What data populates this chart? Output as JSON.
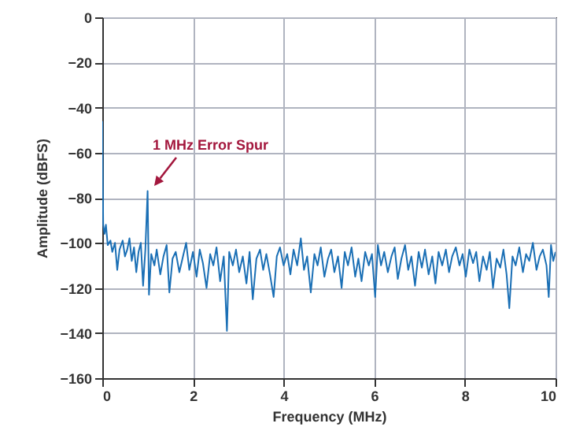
{
  "chart_data": {
    "type": "line",
    "xlabel": "Frequency (MHz)",
    "ylabel": "Amplitude (dBFS)",
    "xlim": [
      0,
      10
    ],
    "xticks": [
      0,
      2,
      4,
      6,
      8,
      10
    ],
    "ylim": [
      -160,
      0
    ],
    "yticks": [
      -160,
      -140,
      -120,
      -100,
      -80,
      -60,
      -40,
      -20,
      0
    ],
    "grid": true,
    "annotations": [
      "1 MHz Error Spur"
    ],
    "series": [
      {
        "color": "#1a6fb5",
        "x": [
          0,
          0.02,
          0.05,
          0.08,
          0.12,
          0.18,
          0.22,
          0.28,
          0.33,
          0.38,
          0.45,
          0.5,
          0.55,
          0.6,
          0.65,
          0.7,
          0.75,
          0.8,
          0.85,
          0.9,
          0.95,
          1.0,
          1.03,
          1.08,
          1.15,
          1.2,
          1.28,
          1.35,
          1.42,
          1.48,
          1.55,
          1.62,
          1.7,
          1.78,
          1.85,
          1.92,
          2.0,
          2.08,
          2.15,
          2.22,
          2.3,
          2.38,
          2.45,
          2.52,
          2.6,
          2.68,
          2.75,
          2.8,
          2.88,
          2.95,
          3.02,
          3.1,
          3.18,
          3.25,
          3.32,
          3.4,
          3.48,
          3.55,
          3.62,
          3.7,
          3.78,
          3.85,
          3.92,
          4.0,
          4.08,
          4.15,
          4.22,
          4.3,
          4.38,
          4.45,
          4.52,
          4.6,
          4.68,
          4.75,
          4.82,
          4.9,
          4.98,
          5.05,
          5.12,
          5.2,
          5.28,
          5.35,
          5.42,
          5.5,
          5.58,
          5.65,
          5.72,
          5.8,
          5.88,
          5.95,
          6.02,
          6.08,
          6.15,
          6.22,
          6.3,
          6.38,
          6.45,
          6.52,
          6.6,
          6.68,
          6.75,
          6.82,
          6.9,
          6.98,
          7.05,
          7.12,
          7.2,
          7.28,
          7.35,
          7.42,
          7.5,
          7.58,
          7.65,
          7.72,
          7.8,
          7.88,
          7.95,
          8.02,
          8.1,
          8.18,
          8.25,
          8.32,
          8.4,
          8.48,
          8.55,
          8.62,
          8.7,
          8.78,
          8.85,
          8.92,
          8.98,
          9.05,
          9.12,
          9.2,
          9.28,
          9.35,
          9.42,
          9.5,
          9.58,
          9.65,
          9.72,
          9.8,
          9.85,
          9.9,
          9.95,
          10
        ],
        "values": [
          -46,
          -92,
          -96,
          -92,
          -101,
          -99,
          -104,
          -100,
          -112,
          -103,
          -99,
          -106,
          -103,
          -98,
          -108,
          -102,
          -113,
          -104,
          -100,
          -119,
          -103,
          -77,
          -123,
          -105,
          -110,
          -103,
          -114,
          -106,
          -101,
          -122,
          -107,
          -104,
          -113,
          -106,
          -100,
          -112,
          -104,
          -115,
          -103,
          -109,
          -120,
          -105,
          -110,
          -102,
          -117,
          -106,
          -139,
          -104,
          -110,
          -103,
          -113,
          -106,
          -118,
          -104,
          -125,
          -107,
          -103,
          -112,
          -105,
          -114,
          -124,
          -106,
          -102,
          -110,
          -105,
          -114,
          -103,
          -110,
          -98,
          -112,
          -106,
          -122,
          -105,
          -110,
          -102,
          -115,
          -107,
          -103,
          -113,
          -106,
          -120,
          -104,
          -110,
          -102,
          -115,
          -107,
          -117,
          -104,
          -110,
          -105,
          -124,
          -101,
          -110,
          -104,
          -113,
          -106,
          -102,
          -116,
          -107,
          -101,
          -112,
          -106,
          -119,
          -104,
          -111,
          -103,
          -114,
          -106,
          -118,
          -104,
          -110,
          -103,
          -113,
          -106,
          -102,
          -110,
          -105,
          -115,
          -103,
          -109,
          -104,
          -117,
          -106,
          -112,
          -104,
          -120,
          -107,
          -111,
          -103,
          -114,
          -129,
          -106,
          -110,
          -102,
          -113,
          -105,
          -108,
          -100,
          -112,
          -106,
          -103,
          -110,
          -124,
          -101,
          -108,
          -104
        ]
      }
    ]
  }
}
